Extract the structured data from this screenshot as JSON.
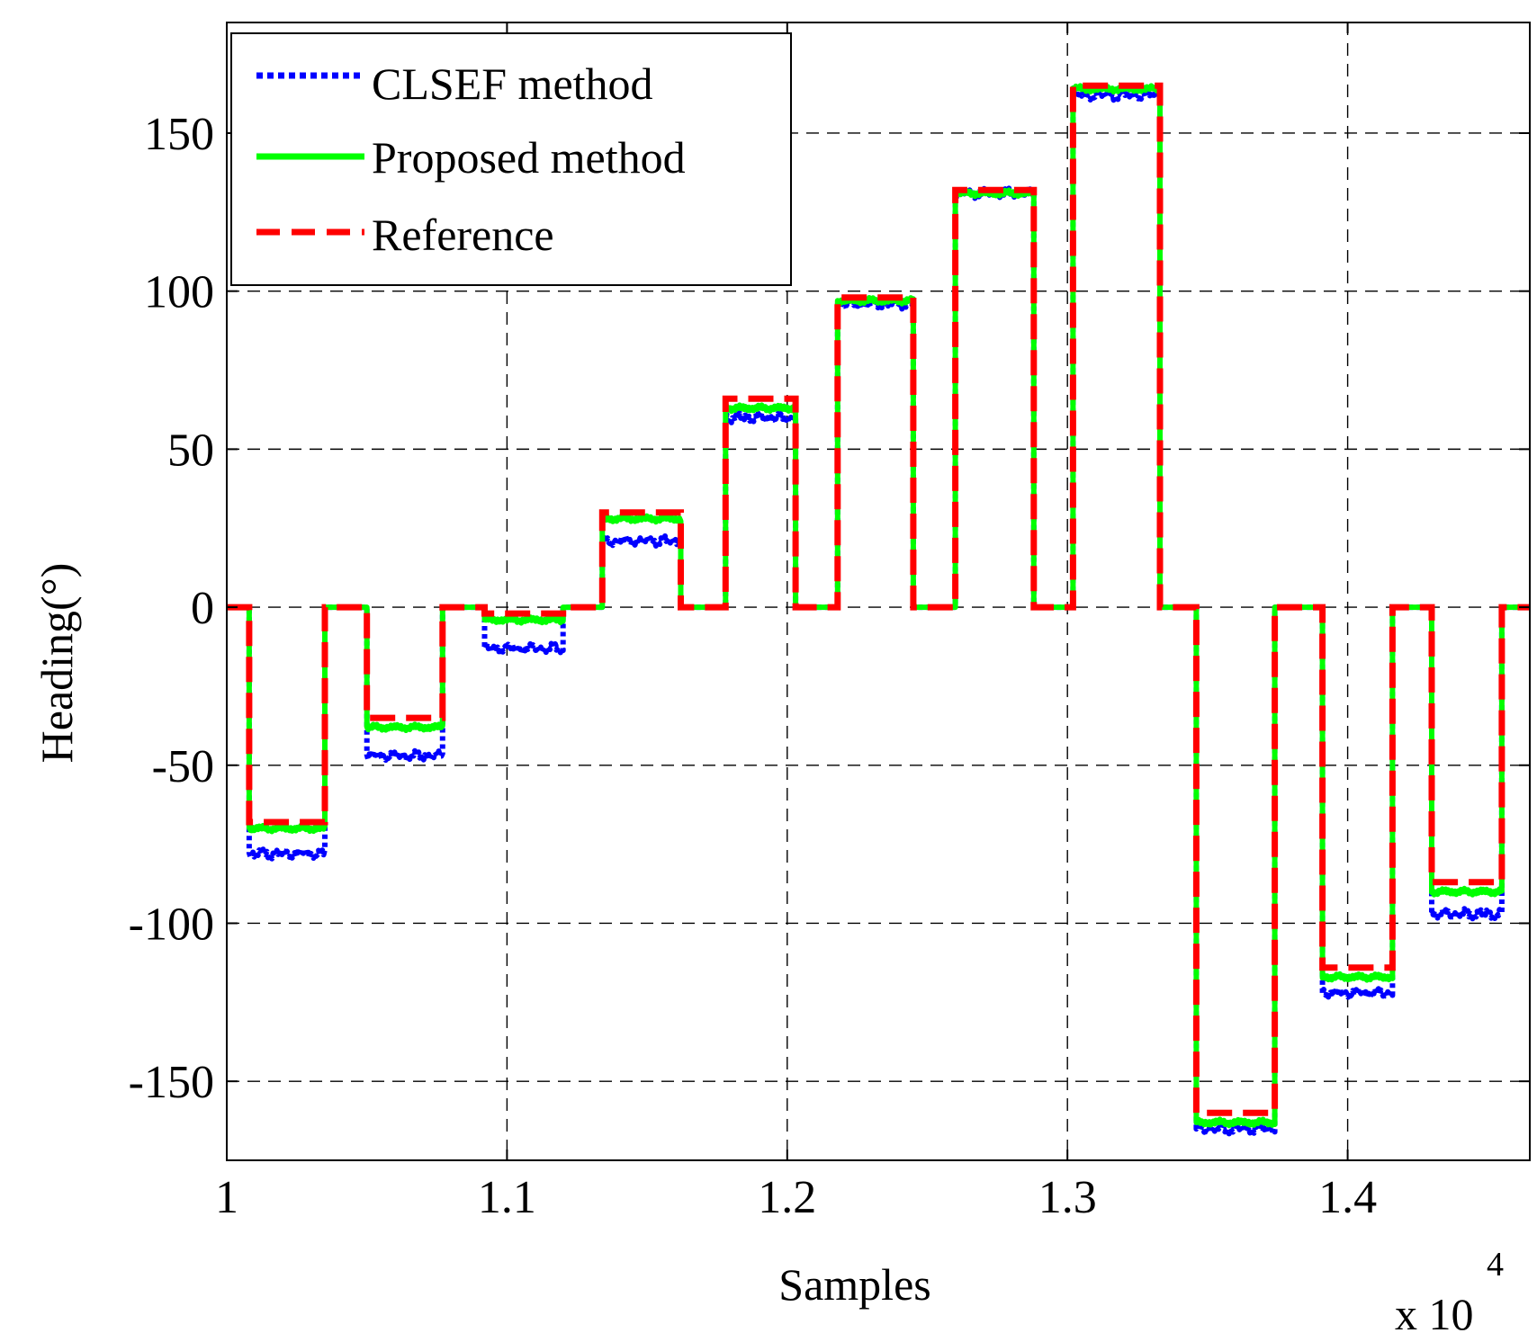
{
  "chart_data": {
    "type": "line",
    "title": "",
    "xlabel": "Samples",
    "ylabel": "Heading(°)",
    "x_multiplier_label": {
      "base": "x 10",
      "exponent": "4"
    },
    "xlim": [
      1.0,
      1.465
    ],
    "ylim": [
      -175,
      185
    ],
    "x_ticks": [
      1,
      1.1,
      1.2,
      1.3,
      1.4
    ],
    "x_tick_labels": [
      "1",
      "1.1",
      "1.2",
      "1.3",
      "1.4"
    ],
    "y_ticks": [
      150,
      100,
      50,
      0,
      -50,
      -100,
      -150
    ],
    "y_tick_labels": [
      "150",
      "100",
      "50",
      "0",
      "-50",
      "-100",
      "-150"
    ],
    "grid": true,
    "legend_position": "top-left",
    "colors": {
      "clsef": "#0000ff",
      "proposed": "#00ff00",
      "reference": "#ff0000"
    },
    "segments": [
      {
        "start": 1.008,
        "end": 1.035,
        "reference": -68,
        "proposed": -70,
        "clsef": -78
      },
      {
        "start": 1.05,
        "end": 1.077,
        "reference": -35,
        "proposed": -38,
        "clsef": -47
      },
      {
        "start": 1.092,
        "end": 1.12,
        "reference": -2,
        "proposed": -4,
        "clsef": -13
      },
      {
        "start": 1.134,
        "end": 1.162,
        "reference": 30,
        "proposed": 28,
        "clsef": 21
      },
      {
        "start": 1.178,
        "end": 1.203,
        "reference": 66,
        "proposed": 63,
        "clsef": 60
      },
      {
        "start": 1.218,
        "end": 1.245,
        "reference": 98,
        "proposed": 97,
        "clsef": 96
      },
      {
        "start": 1.26,
        "end": 1.288,
        "reference": 132,
        "proposed": 131,
        "clsef": 131
      },
      {
        "start": 1.302,
        "end": 1.333,
        "reference": 165,
        "proposed": 164,
        "clsef": 162
      },
      {
        "start": 1.346,
        "end": 1.374,
        "reference": -160,
        "proposed": -163,
        "clsef": -165
      },
      {
        "start": 1.391,
        "end": 1.416,
        "reference": -114,
        "proposed": -117,
        "clsef": -122
      },
      {
        "start": 1.43,
        "end": 1.455,
        "reference": -87,
        "proposed": -90,
        "clsef": -97
      }
    ],
    "series": [
      {
        "name": "CLSEF method",
        "key": "clsef",
        "style": "dotted"
      },
      {
        "name": "Proposed method",
        "key": "proposed",
        "style": "solid"
      },
      {
        "name": "Reference",
        "key": "reference",
        "style": "dashed"
      }
    ]
  }
}
